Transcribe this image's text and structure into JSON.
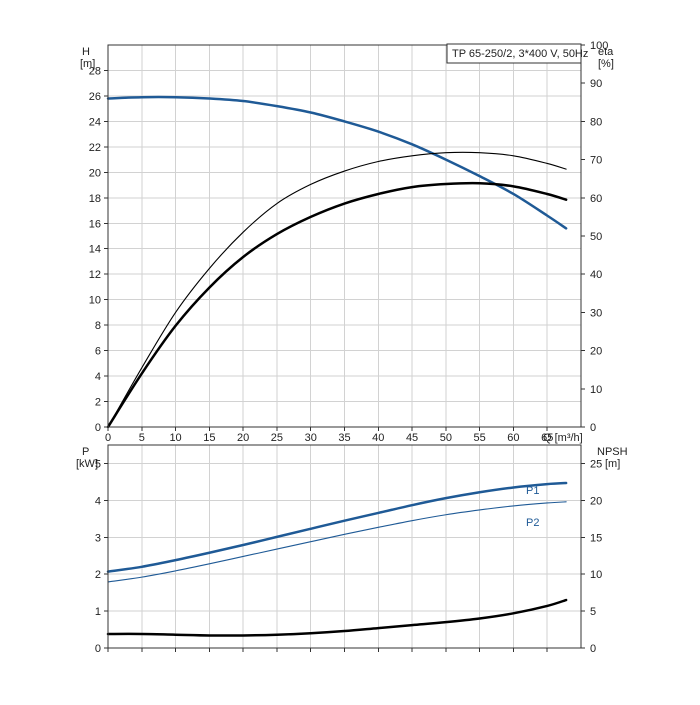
{
  "title_box": "TP 65-250/2, 3*400 V, 50Hz",
  "colors": {
    "blue": "#1f5a96",
    "black": "#000000",
    "grid": "#d2d2d2"
  },
  "chart_data": [
    {
      "type": "line",
      "name": "head-efficiency",
      "xlabel": "Q [m³/h]",
      "xlim": [
        0,
        70
      ],
      "x_ticks": [
        0,
        5,
        10,
        15,
        20,
        25,
        30,
        35,
        40,
        45,
        50,
        55,
        60,
        65
      ],
      "left_axis": {
        "label": "H",
        "unit": "[m]",
        "lim": [
          0,
          30
        ],
        "ticks": [
          0,
          2,
          4,
          6,
          8,
          10,
          12,
          14,
          16,
          18,
          20,
          22,
          24,
          26,
          28
        ]
      },
      "right_axis": {
        "label": "eta",
        "unit": "[%]",
        "lim": [
          0,
          100
        ],
        "ticks": [
          0,
          10,
          20,
          30,
          40,
          50,
          60,
          70,
          80,
          90,
          100
        ]
      },
      "grid": true,
      "series": [
        {
          "axis": "left",
          "color": "#1f5a96",
          "style": "thick",
          "x": [
            0,
            5,
            10,
            15,
            20,
            25,
            30,
            35,
            40,
            45,
            50,
            55,
            60,
            65,
            67.8
          ],
          "y": [
            25.8,
            25.9,
            25.9,
            25.8,
            25.6,
            25.2,
            24.7,
            24.0,
            23.2,
            22.2,
            21.0,
            19.7,
            18.3,
            16.6,
            15.6
          ]
        },
        {
          "axis": "right",
          "color": "#000000",
          "style": "thin",
          "x": [
            0,
            5,
            10,
            15,
            20,
            25,
            30,
            35,
            40,
            45,
            50,
            55,
            60,
            65,
            67.8
          ],
          "y": [
            0,
            15.5,
            30,
            41.5,
            51,
            58.5,
            63.5,
            67,
            69.5,
            71,
            71.8,
            71.8,
            71,
            69,
            67.5
          ]
        },
        {
          "axis": "right",
          "color": "#000000",
          "style": "thick",
          "x": [
            0,
            5,
            10,
            15,
            20,
            25,
            30,
            35,
            40,
            45,
            50,
            55,
            60,
            65,
            67.8
          ],
          "y": [
            0,
            14,
            26.5,
            36.5,
            44.5,
            50.5,
            55,
            58.5,
            61,
            62.8,
            63.6,
            63.8,
            63,
            61,
            59.5
          ]
        }
      ]
    },
    {
      "type": "line",
      "name": "power-npsh",
      "xlim": [
        0,
        70
      ],
      "left_axis": {
        "label": "P",
        "unit": "[kW]",
        "lim": [
          0,
          5.5
        ],
        "ticks": [
          0,
          1,
          2,
          3,
          4,
          5
        ]
      },
      "right_axis": {
        "label": "NPSH",
        "unit": "[m]",
        "lim": [
          0,
          27.5
        ],
        "ticks": [
          0,
          5,
          10,
          15,
          20,
          25
        ]
      },
      "grid": true,
      "series": [
        {
          "name": "P1",
          "axis": "left",
          "color": "#1f5a96",
          "style": "thick",
          "x": [
            0,
            5,
            10,
            15,
            20,
            25,
            30,
            35,
            40,
            45,
            50,
            55,
            60,
            65,
            67.8
          ],
          "y": [
            2.07,
            2.2,
            2.38,
            2.58,
            2.79,
            3.01,
            3.23,
            3.45,
            3.66,
            3.87,
            4.06,
            4.22,
            4.35,
            4.44,
            4.47
          ]
        },
        {
          "name": "P2",
          "axis": "left",
          "color": "#1f5a96",
          "style": "thin",
          "x": [
            0,
            5,
            10,
            15,
            20,
            25,
            30,
            35,
            40,
            45,
            50,
            55,
            60,
            65,
            67.8
          ],
          "y": [
            1.79,
            1.92,
            2.09,
            2.28,
            2.48,
            2.68,
            2.88,
            3.08,
            3.27,
            3.45,
            3.61,
            3.74,
            3.85,
            3.93,
            3.96
          ]
        },
        {
          "axis": "right",
          "color": "#000000",
          "style": "thick",
          "x": [
            0,
            5,
            10,
            15,
            20,
            25,
            30,
            35,
            40,
            45,
            50,
            55,
            60,
            65,
            67.8
          ],
          "y": [
            1.9,
            1.9,
            1.8,
            1.7,
            1.7,
            1.8,
            2.0,
            2.3,
            2.7,
            3.1,
            3.5,
            4.0,
            4.7,
            5.7,
            6.5
          ]
        }
      ]
    }
  ]
}
